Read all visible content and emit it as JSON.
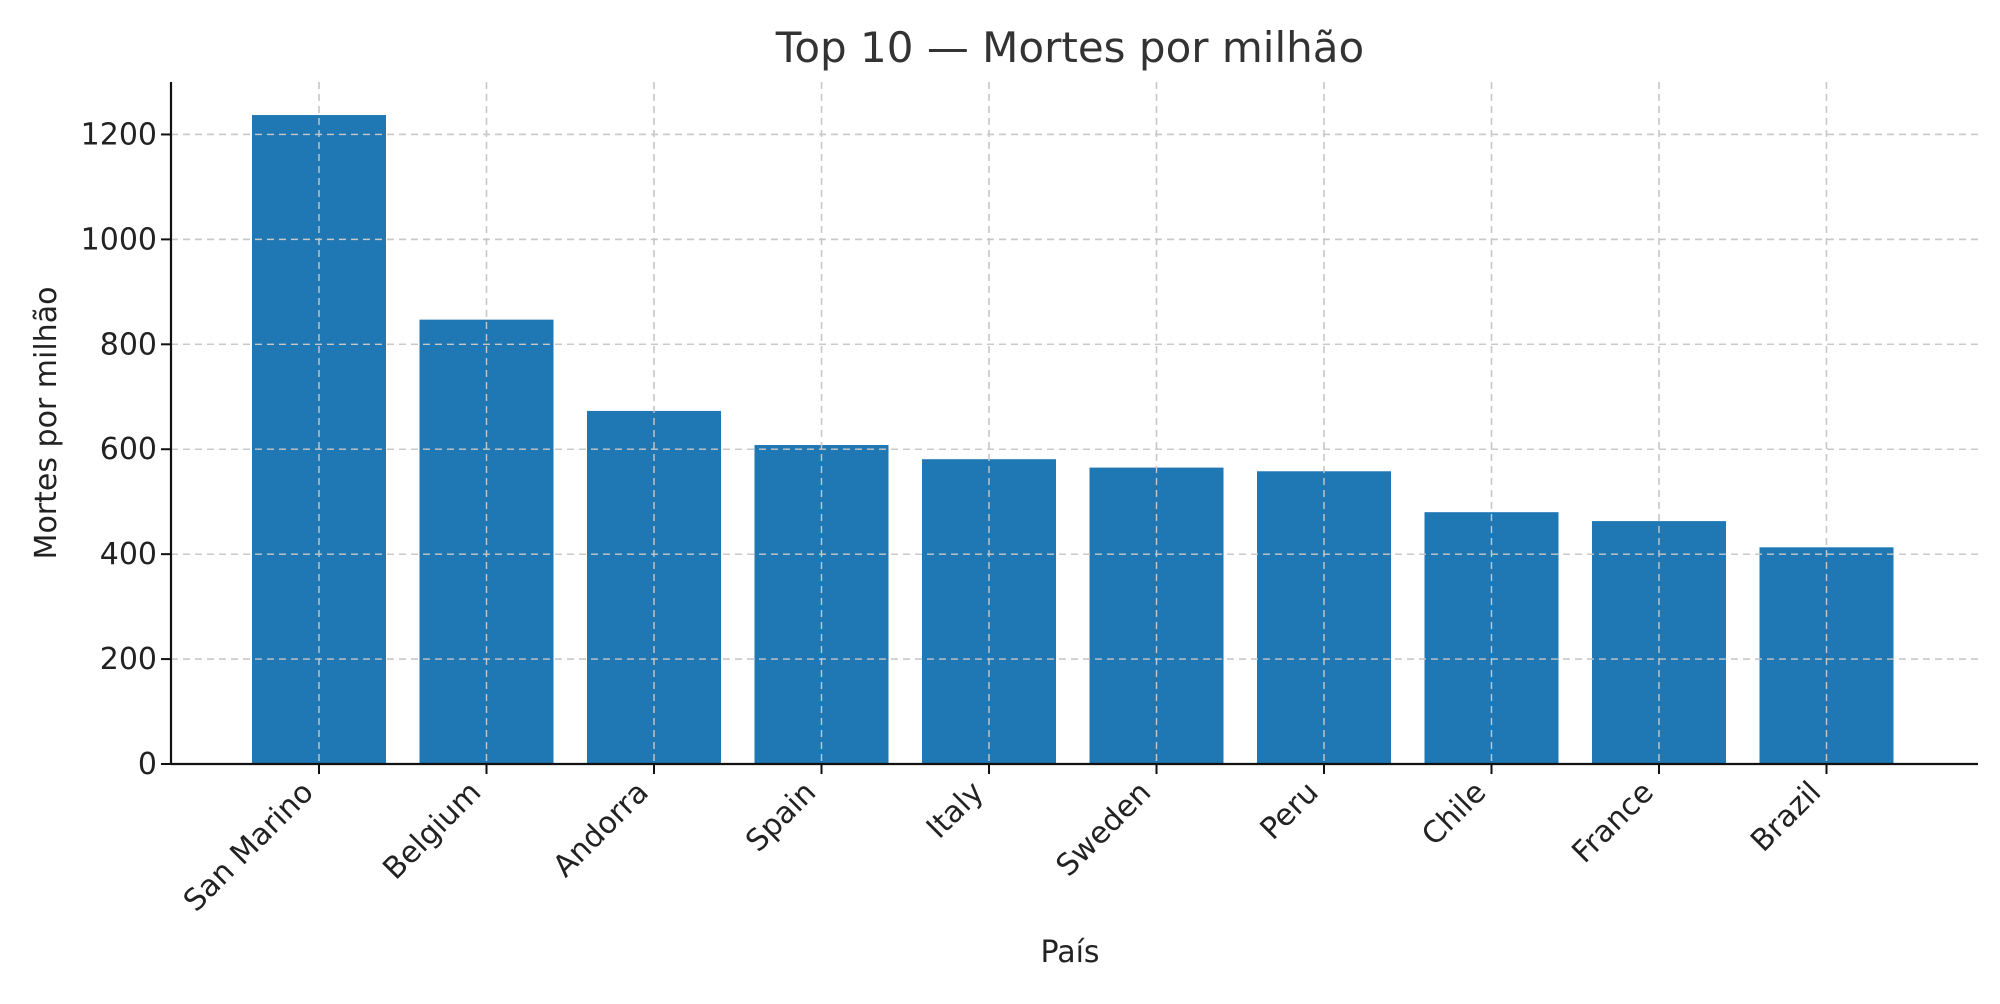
{
  "chart_data": {
    "type": "bar",
    "title": "Top 10 — Mortes por milhão",
    "xlabel": "País",
    "ylabel": "Mortes por milhão",
    "categories": [
      "San Marino",
      "Belgium",
      "Andorra",
      "Spain",
      "Italy",
      "Sweden",
      "Peru",
      "Chile",
      "France",
      "Brazil"
    ],
    "values": [
      1237,
      847,
      673,
      608,
      581,
      565,
      558,
      480,
      463,
      413
    ],
    "ylim": [
      0,
      1300
    ],
    "yticks": [
      0,
      200,
      400,
      600,
      800,
      1000,
      1200
    ],
    "grid": true,
    "bar_color": "#1f77b4"
  }
}
